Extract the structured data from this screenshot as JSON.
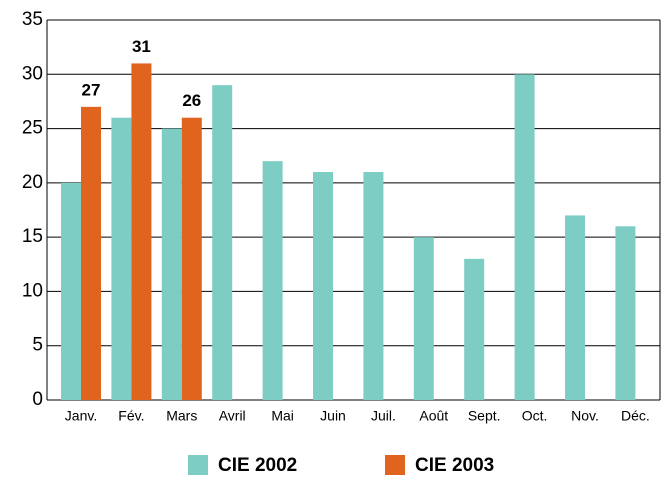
{
  "chart_data": {
    "type": "bar",
    "categories": [
      "Janv.",
      "Fév.",
      "Mars",
      "Avril",
      "Mai",
      "Juin",
      "Juil.",
      "Août",
      "Sept.",
      "Oct.",
      "Nov.",
      "Déc."
    ],
    "series": [
      {
        "name": "CIE 2002",
        "color": "#7ecdc4",
        "values": [
          20,
          26,
          25,
          29,
          22,
          21,
          21,
          15,
          13,
          30,
          17,
          16
        ]
      },
      {
        "name": "CIE 2003",
        "color": "#e0641e",
        "values": [
          27,
          31,
          26,
          null,
          null,
          null,
          null,
          null,
          null,
          null,
          null,
          null
        ]
      }
    ],
    "ylim": [
      0,
      35
    ],
    "yticks": [
      0,
      5,
      10,
      15,
      20,
      25,
      30,
      35
    ],
    "grid": true,
    "legend": "bottom"
  }
}
